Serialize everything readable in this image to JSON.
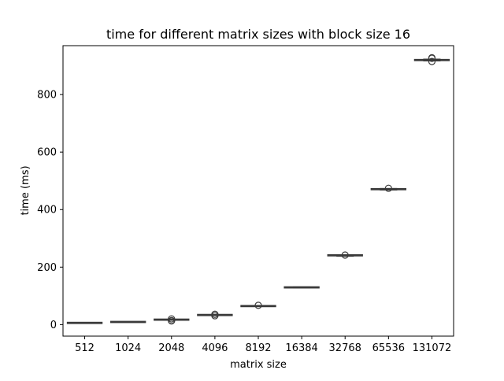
{
  "chart_data": {
    "type": "box",
    "title": "time for different matrix sizes with block size 16",
    "xlabel": "matrix size",
    "ylabel": "time (ms)",
    "categories": [
      "512",
      "1024",
      "2048",
      "4096",
      "8192",
      "16384",
      "32768",
      "65536",
      "131072"
    ],
    "ylim": [
      -40,
      970
    ],
    "yticks": [
      0,
      200,
      400,
      600,
      800
    ],
    "grid": false,
    "legend": "none",
    "colors": {
      "box_fill": "#4c72b0",
      "line": "#3a3a3a",
      "axis": "#000000"
    },
    "boxes": [
      {
        "category": "512",
        "whisker_low": 5.5,
        "q1": 5.8,
        "median": 6,
        "q3": 6.2,
        "whisker_high": 6.5,
        "outliers": []
      },
      {
        "category": "1024",
        "whisker_low": 8.5,
        "q1": 9.0,
        "median": 9.3,
        "q3": 9.6,
        "whisker_high": 10,
        "outliers": []
      },
      {
        "category": "2048",
        "whisker_low": 16,
        "q1": 16.8,
        "median": 17.3,
        "q3": 17.8,
        "whisker_high": 18.5,
        "outliers": [
          13,
          14,
          20
        ]
      },
      {
        "category": "4096",
        "whisker_low": 32,
        "q1": 33,
        "median": 33.5,
        "q3": 34,
        "whisker_high": 35,
        "outliers": [
          31,
          36
        ]
      },
      {
        "category": "8192",
        "whisker_low": 63,
        "q1": 64,
        "median": 64.5,
        "q3": 65,
        "whisker_high": 66,
        "outliers": [
          67
        ]
      },
      {
        "category": "16384",
        "whisker_low": 128,
        "q1": 129,
        "median": 129.5,
        "q3": 130,
        "whisker_high": 131,
        "outliers": []
      },
      {
        "category": "32768",
        "whisker_low": 238,
        "q1": 240,
        "median": 241,
        "q3": 242,
        "whisker_high": 243,
        "outliers": [
          242
        ]
      },
      {
        "category": "65536",
        "whisker_low": 468,
        "q1": 470,
        "median": 471,
        "q3": 472,
        "whisker_high": 473,
        "outliers": [
          474
        ]
      },
      {
        "category": "131072",
        "whisker_low": 917,
        "q1": 919,
        "median": 920,
        "q3": 921,
        "whisker_high": 923,
        "outliers": [
          915,
          926,
          928
        ]
      }
    ]
  }
}
